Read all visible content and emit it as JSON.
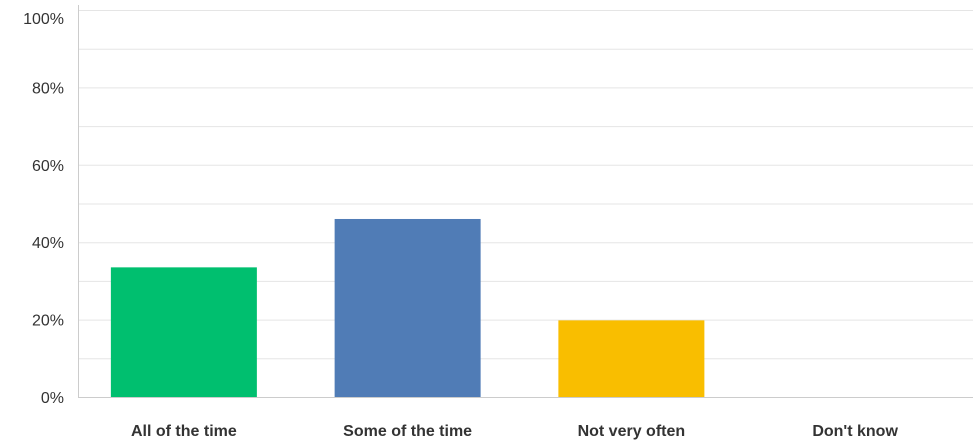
{
  "chart_data": {
    "type": "bar",
    "title": "",
    "xlabel": "",
    "ylabel": "",
    "categories": [
      "All of the time",
      "Some of the time",
      "Not very often",
      "Don't know"
    ],
    "values": [
      33.5,
      46,
      19.8,
      0
    ],
    "ylim": [
      0,
      100
    ],
    "yticks": [
      "0%",
      "20%",
      "40%",
      "60%",
      "80%",
      "100%"
    ],
    "ytick_values": [
      0,
      20,
      40,
      60,
      80,
      100
    ],
    "minor_grid_values": [
      10,
      30,
      50,
      70,
      90
    ],
    "grid": true,
    "colors": [
      "#00bf6f",
      "#507cb6",
      "#f9be00",
      "#6bc8cd"
    ],
    "grid_color": "#e5e5e5",
    "axis_color": "#cccccc"
  }
}
